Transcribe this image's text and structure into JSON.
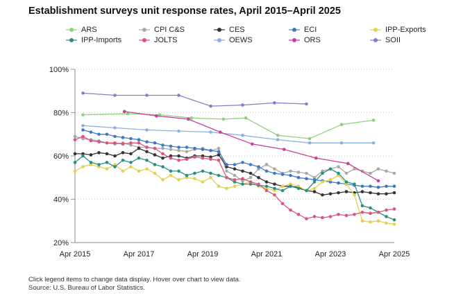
{
  "title": "Establishment surveys unit response rates, April 2015–April 2025",
  "notes": {
    "line1": "Click legend items to change data display. Hover over chart to view data.",
    "line2": "Source: U.S. Bureau of Labor Statistics."
  },
  "chart_data": {
    "type": "line",
    "title": "Establishment surveys unit response rates, April 2015–April 2025",
    "xlabel": "",
    "ylabel": "",
    "xlim": [
      2015.25,
      2025.25
    ],
    "ylim": [
      20,
      100
    ],
    "x_ticks": [
      {
        "value": 2015.25,
        "label": "Apr 2015"
      },
      {
        "value": 2017.25,
        "label": "Apr 2017"
      },
      {
        "value": 2019.25,
        "label": "Apr 2019"
      },
      {
        "value": 2021.25,
        "label": "Apr 2021"
      },
      {
        "value": 2023.25,
        "label": "Apr 2023"
      },
      {
        "value": 2025.25,
        "label": "Apr 2025"
      }
    ],
    "y_ticks": [
      {
        "value": 20,
        "label": "20%"
      },
      {
        "value": 40,
        "label": "40%"
      },
      {
        "value": 60,
        "label": "60%"
      },
      {
        "value": 80,
        "label": "80%"
      },
      {
        "value": 100,
        "label": "100%"
      }
    ],
    "grid": "horizontal-dotted",
    "legend_position": "top",
    "series": [
      {
        "name": "ARS",
        "color": "#8fd07a",
        "x": [
          2015.5,
          2016.9,
          2017.9,
          2018.9,
          2019.9,
          2020.6,
          2021.6,
          2022.6,
          2023.6,
          2024.6
        ],
        "y": [
          79,
          79.5,
          79,
          77.5,
          77,
          77.5,
          69.5,
          68,
          74.5,
          76.5
        ]
      },
      {
        "name": "CPI C&S",
        "color": "#a8a8a8",
        "x": [
          2015.25,
          2015.5,
          2015.75,
          2016.0,
          2016.25,
          2016.5,
          2016.75,
          2017.0,
          2017.25,
          2017.5,
          2017.75,
          2018.0,
          2018.25,
          2018.5,
          2018.75,
          2019.0,
          2019.25,
          2019.5,
          2019.75,
          2020.0,
          2020.25,
          2020.5,
          2020.75,
          2021.0,
          2021.25,
          2021.5,
          2021.75,
          2022.0,
          2022.25,
          2022.5,
          2022.75,
          2023.0,
          2023.25,
          2023.5,
          2023.75,
          2024.0,
          2024.25,
          2024.5,
          2024.75,
          2025.0,
          2025.25
        ],
        "y": [
          69,
          68,
          67.5,
          67,
          66,
          65.5,
          66,
          65,
          64,
          64,
          63.5,
          63.5,
          63,
          62.5,
          62,
          63,
          63.5,
          62.5,
          63.5,
          53,
          51,
          48.5,
          50,
          54,
          56,
          54,
          52,
          53,
          52.5,
          52,
          50,
          53,
          54,
          55,
          52,
          54,
          53,
          52,
          54,
          53,
          52
        ]
      },
      {
        "name": "CES",
        "color": "#333333",
        "x": [
          2015.25,
          2015.5,
          2015.75,
          2016.0,
          2016.25,
          2016.5,
          2016.75,
          2017.0,
          2017.25,
          2017.5,
          2017.75,
          2018.0,
          2018.25,
          2018.5,
          2018.75,
          2019.0,
          2019.25,
          2019.5,
          2019.75,
          2020.0,
          2020.25,
          2020.5,
          2020.75,
          2021.0,
          2021.25,
          2021.5,
          2021.75,
          2022.0,
          2022.25,
          2022.5,
          2022.75,
          2023.0,
          2023.25,
          2023.5,
          2023.75,
          2024.0,
          2024.25,
          2024.5,
          2024.75,
          2025.0,
          2025.25
        ],
        "y": [
          61,
          61,
          60.5,
          61.5,
          61,
          60,
          61.5,
          61,
          63.5,
          62,
          60.5,
          59,
          60,
          60,
          59,
          60,
          60,
          59.5,
          60.5,
          55,
          54,
          53,
          52,
          50,
          48,
          47,
          46,
          46,
          45.5,
          44,
          43.5,
          42,
          42.5,
          43,
          43.5,
          43,
          43.5,
          43,
          42.5,
          42.5,
          43
        ]
      },
      {
        "name": "ECI",
        "color": "#3d78c6",
        "x": [
          2015.5,
          2015.75,
          2016.0,
          2016.25,
          2016.5,
          2016.75,
          2017.0,
          2017.25,
          2017.5,
          2017.75,
          2018.0,
          2018.25,
          2018.5,
          2018.75,
          2019.0,
          2019.25,
          2019.5,
          2019.75,
          2020.0,
          2020.25,
          2020.5,
          2020.75,
          2021.0,
          2021.25,
          2021.5,
          2021.75,
          2022.0,
          2022.25,
          2022.5,
          2022.75,
          2023.0,
          2023.25,
          2023.5,
          2023.75,
          2024.0,
          2024.25,
          2024.5,
          2024.75,
          2025.0,
          2025.25
        ],
        "y": [
          72,
          71,
          70,
          70,
          69,
          68.5,
          68,
          67.5,
          66.5,
          66,
          65,
          64.5,
          64,
          64,
          63.5,
          63,
          62.5,
          62,
          56,
          56,
          57,
          56,
          55,
          53,
          52,
          51.5,
          51,
          50,
          49.5,
          49,
          48.5,
          48,
          47.5,
          47,
          46.5,
          46,
          46,
          45.5,
          46,
          46
        ]
      },
      {
        "name": "IPP-Exports",
        "color": "#e6cf4f",
        "x": [
          2015.25,
          2015.5,
          2015.75,
          2016.0,
          2016.25,
          2016.5,
          2016.75,
          2017.0,
          2017.25,
          2017.5,
          2017.75,
          2018.0,
          2018.25,
          2018.5,
          2018.75,
          2019.0,
          2019.25,
          2019.5,
          2019.75,
          2020.0,
          2020.25,
          2020.5,
          2020.75,
          2021.0,
          2021.25,
          2021.5,
          2021.75,
          2022.0,
          2022.25,
          2022.5,
          2022.75,
          2023.0,
          2023.25,
          2023.5,
          2023.75,
          2024.0,
          2024.25,
          2024.5,
          2024.75,
          2025.0,
          2025.25
        ],
        "y": [
          53,
          55,
          56,
          55,
          54,
          56,
          53,
          55,
          53,
          54,
          52,
          49,
          51,
          49,
          50,
          49.5,
          48,
          50,
          46,
          45,
          46,
          47,
          48,
          46,
          45,
          44,
          46,
          47,
          46,
          44,
          45,
          48,
          49,
          51,
          47,
          42,
          30,
          29.5,
          30,
          29,
          28.5
        ]
      },
      {
        "name": "IPP-Imports",
        "color": "#2a8f83",
        "x": [
          2015.25,
          2015.5,
          2015.75,
          2016.0,
          2016.25,
          2016.5,
          2016.75,
          2017.0,
          2017.25,
          2017.5,
          2017.75,
          2018.0,
          2018.25,
          2018.5,
          2018.75,
          2019.0,
          2019.25,
          2019.5,
          2019.75,
          2020.0,
          2020.25,
          2020.5,
          2020.75,
          2021.0,
          2021.25,
          2021.5,
          2021.75,
          2022.0,
          2022.25,
          2022.5,
          2022.75,
          2023.0,
          2023.25,
          2023.5,
          2023.75,
          2024.0,
          2024.25,
          2024.5,
          2024.75,
          2025.0,
          2025.25
        ],
        "y": [
          57,
          60,
          57,
          56,
          57,
          55,
          58,
          57,
          59,
          58,
          56,
          55,
          53,
          53,
          51,
          52,
          53,
          52,
          51,
          50,
          48,
          47,
          47,
          46.5,
          46,
          45,
          44,
          46,
          45,
          44,
          48,
          52,
          54,
          52,
          48,
          47,
          37,
          36,
          34,
          32,
          30.5
        ]
      },
      {
        "name": "JOLTS",
        "color": "#d9567a",
        "x": [
          2015.25,
          2015.5,
          2015.75,
          2016.0,
          2016.25,
          2016.5,
          2016.75,
          2017.0,
          2017.25,
          2017.5,
          2017.75,
          2018.0,
          2018.25,
          2018.5,
          2018.75,
          2019.0,
          2019.25,
          2019.5,
          2019.75,
          2020.0,
          2020.25,
          2020.5,
          2020.75,
          2021.0,
          2021.25,
          2021.5,
          2021.75,
          2022.0,
          2022.25,
          2022.5,
          2022.75,
          2023.0,
          2023.25,
          2023.5,
          2023.75,
          2024.0,
          2024.25,
          2024.5,
          2024.75,
          2025.0,
          2025.25
        ],
        "y": [
          67.5,
          69,
          67,
          66.5,
          66,
          66,
          65.5,
          66,
          66,
          64,
          63.5,
          61,
          59,
          58,
          58.5,
          59.5,
          59,
          58.5,
          58,
          50,
          49,
          49.5,
          48,
          47,
          44,
          42,
          38,
          35,
          33,
          31,
          32,
          31.5,
          32,
          33,
          32.5,
          33,
          34,
          33.5,
          34,
          35,
          35.5
        ]
      },
      {
        "name": "OEWS",
        "color": "#8ab0e0",
        "x": [
          2015.5,
          2016.5,
          2017.5,
          2018.5,
          2019.5,
          2020.5,
          2021.6,
          2022.6,
          2023.6,
          2024.6
        ],
        "y": [
          74,
          73,
          72,
          71.5,
          71,
          69.5,
          67.5,
          66,
          66,
          66
        ]
      },
      {
        "name": "ORS",
        "color": "#cc3c9e",
        "x": [
          2016.8,
          2017.8,
          2018.8,
          2019.8,
          2020.8,
          2021.8,
          2022.8,
          2023.8,
          2024.75
        ],
        "y": [
          80.5,
          78.5,
          77,
          71,
          65.5,
          63,
          59,
          56.5,
          48.5
        ]
      },
      {
        "name": "SOII",
        "color": "#7f7fc7",
        "x": [
          2015.5,
          2016.5,
          2017.5,
          2018.5,
          2019.5,
          2020.5,
          2021.5,
          2022.5
        ],
        "y": [
          89,
          88,
          88,
          88,
          83,
          83.5,
          84.5,
          84
        ]
      }
    ]
  }
}
